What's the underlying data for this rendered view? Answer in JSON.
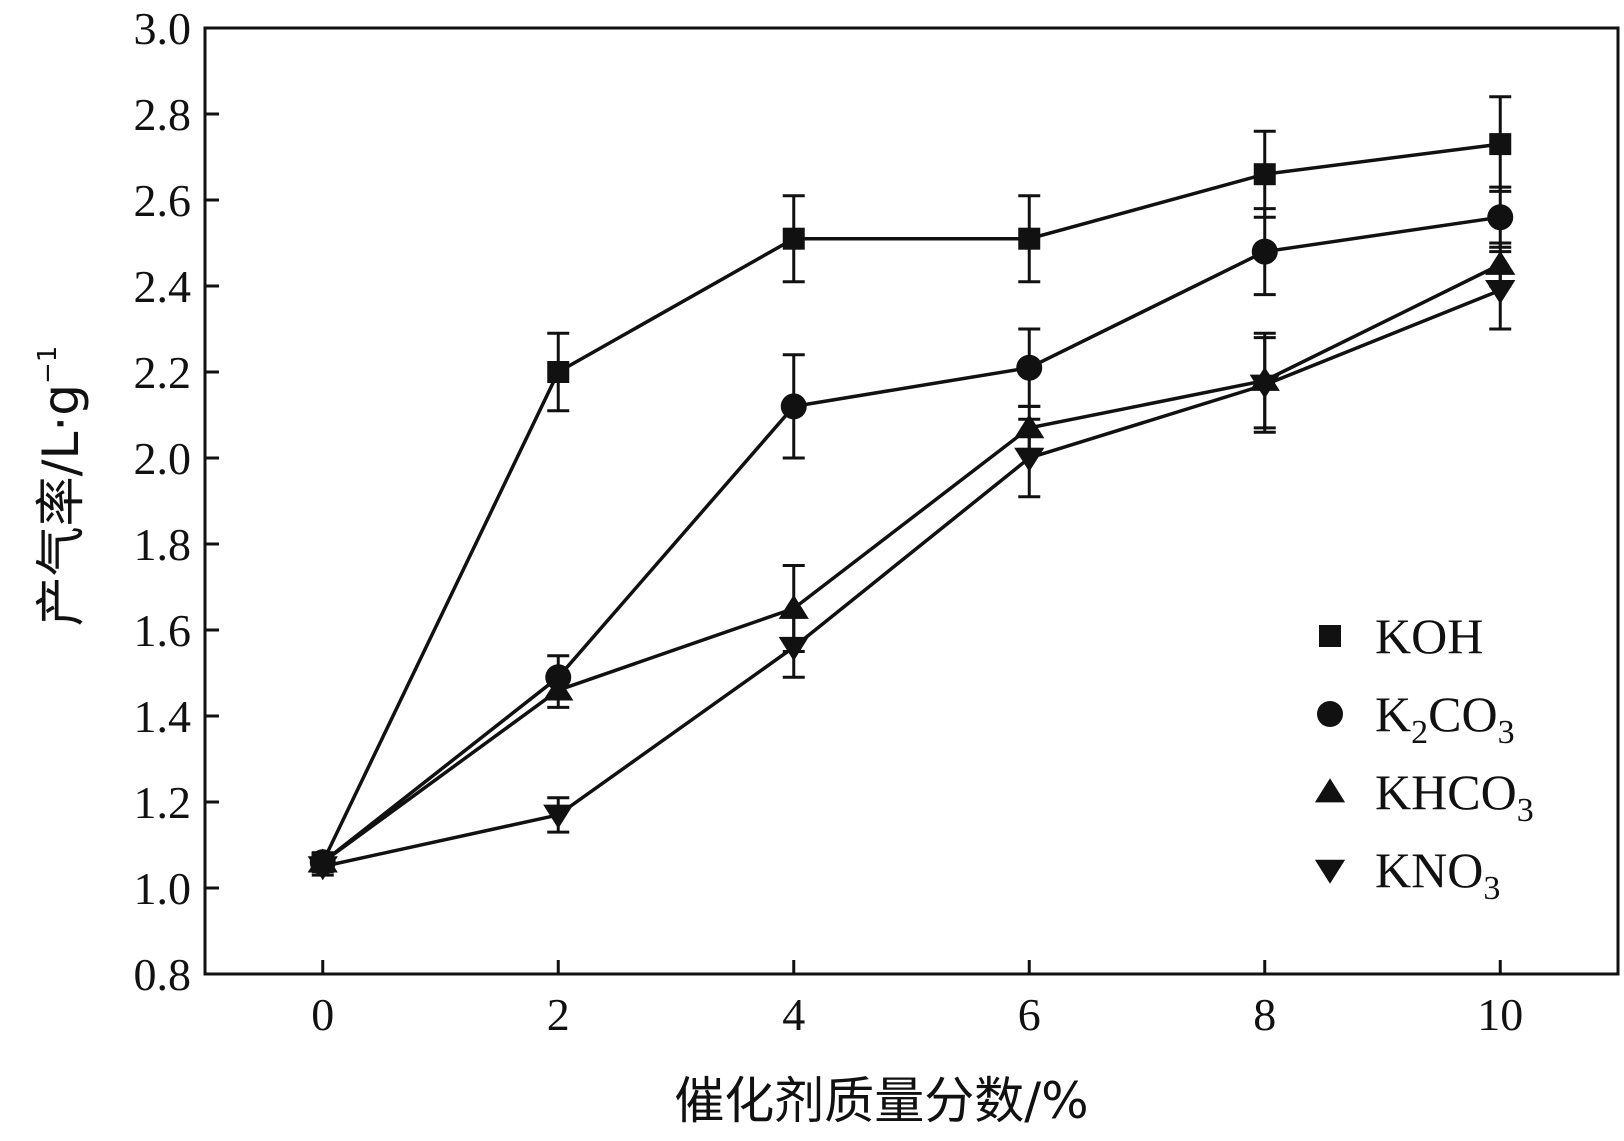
{
  "chart_data": {
    "type": "line",
    "title": "",
    "xlabel": "催化剂质量分数/%",
    "ylabel": {
      "main": "产气率/L·g",
      "sup": "−1"
    },
    "x": [
      0,
      2,
      4,
      6,
      8,
      10
    ],
    "xlim": [
      -1,
      11
    ],
    "ylim": [
      0.8,
      3.0
    ],
    "xticks": [
      "0",
      "2",
      "4",
      "6",
      "8",
      "10"
    ],
    "yticks": [
      "0.8",
      "1.0",
      "1.2",
      "1.4",
      "1.6",
      "1.8",
      "2.0",
      "2.2",
      "2.4",
      "2.6",
      "2.8",
      "3.0"
    ],
    "grid": false,
    "legend_position": "lower-right",
    "series": [
      {
        "name": "KOH",
        "label_base": "KOH",
        "label_sub": "",
        "marker": "square",
        "values": [
          1.06,
          2.2,
          2.51,
          2.51,
          2.66,
          2.73
        ],
        "errors": [
          0.02,
          0.09,
          0.1,
          0.1,
          0.1,
          0.11
        ]
      },
      {
        "name": "K2CO3",
        "label_base": "K",
        "label_sub": "2",
        "label_rest": "CO",
        "label_sub2": "3",
        "marker": "circle",
        "values": [
          1.06,
          1.49,
          2.12,
          2.21,
          2.48,
          2.56
        ],
        "errors": [
          0.02,
          0.05,
          0.12,
          0.09,
          0.1,
          0.07
        ]
      },
      {
        "name": "KHCO3",
        "label_base": "KHCO",
        "label_sub": "3",
        "marker": "triangle-up",
        "values": [
          1.06,
          1.46,
          1.65,
          2.07,
          2.18,
          2.45
        ],
        "errors": [
          0.02,
          0.04,
          0.1,
          0.05,
          0.11,
          0.05
        ]
      },
      {
        "name": "KNO3",
        "label_base": "KNO",
        "label_sub": "3",
        "marker": "triangle-down",
        "values": [
          1.05,
          1.17,
          1.56,
          2.0,
          2.17,
          2.39
        ],
        "errors": [
          0.02,
          0.04,
          0.07,
          0.09,
          0.11,
          0.09
        ]
      }
    ]
  }
}
